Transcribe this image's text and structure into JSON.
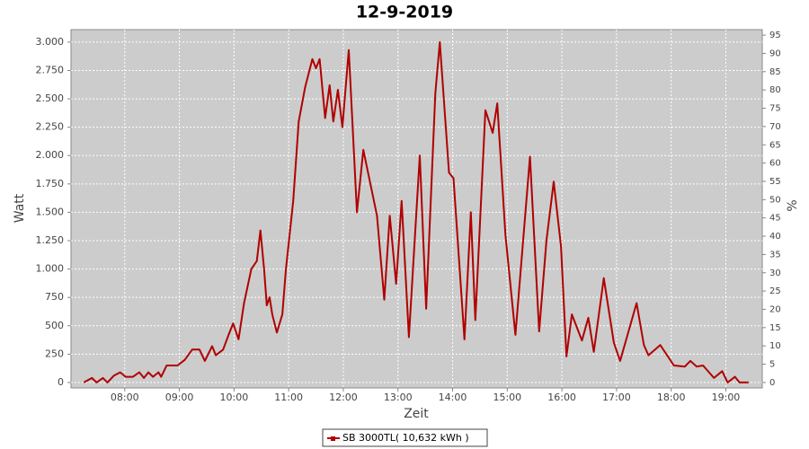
{
  "chart_data": {
    "type": "line",
    "title": "12-9-2019",
    "x_label": "Zeit",
    "y_label": "Watt",
    "y2_label": "%",
    "grid": true,
    "legend": "bottom",
    "xlim": [
      "07:01",
      "19:40"
    ],
    "xticks": [
      "08:00",
      "09:00",
      "10:00",
      "11:00",
      "12:00",
      "13:00",
      "14:00",
      "15:00",
      "16:00",
      "17:00",
      "18:00",
      "19:00"
    ],
    "ylim": [
      -48,
      3110
    ],
    "yticks": [
      0,
      250,
      500,
      750,
      {
        "value": 1000,
        "label": "1.000"
      },
      {
        "value": 1250,
        "label": "1.250"
      },
      {
        "value": 1500,
        "label": "1.500"
      },
      {
        "value": 1750,
        "label": "1.750"
      },
      {
        "value": 2000,
        "label": "2.000"
      },
      {
        "value": 2250,
        "label": "2.250"
      },
      {
        "value": 2500,
        "label": "2.500"
      },
      {
        "value": 2750,
        "label": "2.750"
      },
      {
        "value": 3000,
        "label": "3.000"
      }
    ],
    "y2lim": [
      -1.5,
      96.5
    ],
    "y2ticks": [
      0,
      5,
      10,
      15,
      20,
      25,
      30,
      35,
      40,
      45,
      50,
      55,
      60,
      65,
      70,
      75,
      80,
      85,
      90,
      95
    ],
    "x": [
      "07:15",
      "07:24",
      "07:29",
      "07:36",
      "07:41",
      "07:48",
      "07:55",
      "08:01",
      "08:09",
      "08:16",
      "08:21",
      "08:26",
      "08:31",
      "08:37",
      "08:40",
      "08:46",
      "08:58",
      "09:06",
      "09:14",
      "09:22",
      "09:28",
      "09:36",
      "09:40",
      "09:48",
      "09:54",
      "09:59",
      "10:05",
      "10:11",
      "10:19",
      "10:25",
      "10:29",
      "10:33",
      "10:36",
      "10:39",
      "10:42",
      "10:47",
      "10:53",
      "10:57",
      "11:05",
      "11:11",
      "11:18",
      "11:26",
      "11:30",
      "11:34",
      "11:40",
      "11:45",
      "11:49",
      "11:54",
      "11:59",
      "12:06",
      "12:15",
      "12:22",
      "12:37",
      "12:45",
      "12:51",
      "12:58",
      "13:04",
      "13:12",
      "13:24",
      "13:31",
      "13:41",
      "13:46",
      "13:56",
      "14:01",
      "14:13",
      "14:20",
      "14:25",
      "14:36",
      "14:44",
      "14:49",
      "14:58",
      "15:09",
      "15:25",
      "15:35",
      "15:43",
      "15:51",
      "15:59",
      "16:05",
      "16:11",
      "16:22",
      "16:29",
      "16:35",
      "16:46",
      "16:57",
      "17:04",
      "17:22",
      "17:30",
      "17:35",
      "17:48",
      "18:03",
      "18:15",
      "18:21",
      "18:28",
      "18:35",
      "18:47",
      "18:56",
      "19:02",
      "19:10",
      "19:15",
      "19:25"
    ],
    "series": [
      {
        "name": "SB 3000TL( 10,632 kWh )",
        "color": "#b00000",
        "values": [
          0,
          40,
          0,
          40,
          0,
          60,
          90,
          50,
          50,
          90,
          40,
          90,
          50,
          90,
          50,
          150,
          150,
          200,
          290,
          290,
          190,
          320,
          240,
          290,
          420,
          520,
          380,
          700,
          1000,
          1070,
          1340,
          1000,
          680,
          750,
          600,
          440,
          600,
          1000,
          1600,
          2300,
          2600,
          2850,
          2770,
          2850,
          2330,
          2620,
          2300,
          2580,
          2250,
          2930,
          1500,
          2050,
          1470,
          730,
          1470,
          870,
          1600,
          400,
          2000,
          650,
          2550,
          3000,
          1850,
          1800,
          380,
          1500,
          550,
          2400,
          2200,
          2460,
          1300,
          420,
          1990,
          450,
          1250,
          1770,
          1200,
          230,
          600,
          370,
          570,
          270,
          920,
          350,
          190,
          700,
          330,
          240,
          330,
          150,
          140,
          190,
          140,
          150,
          40,
          100,
          0,
          50,
          0,
          0
        ]
      }
    ]
  }
}
